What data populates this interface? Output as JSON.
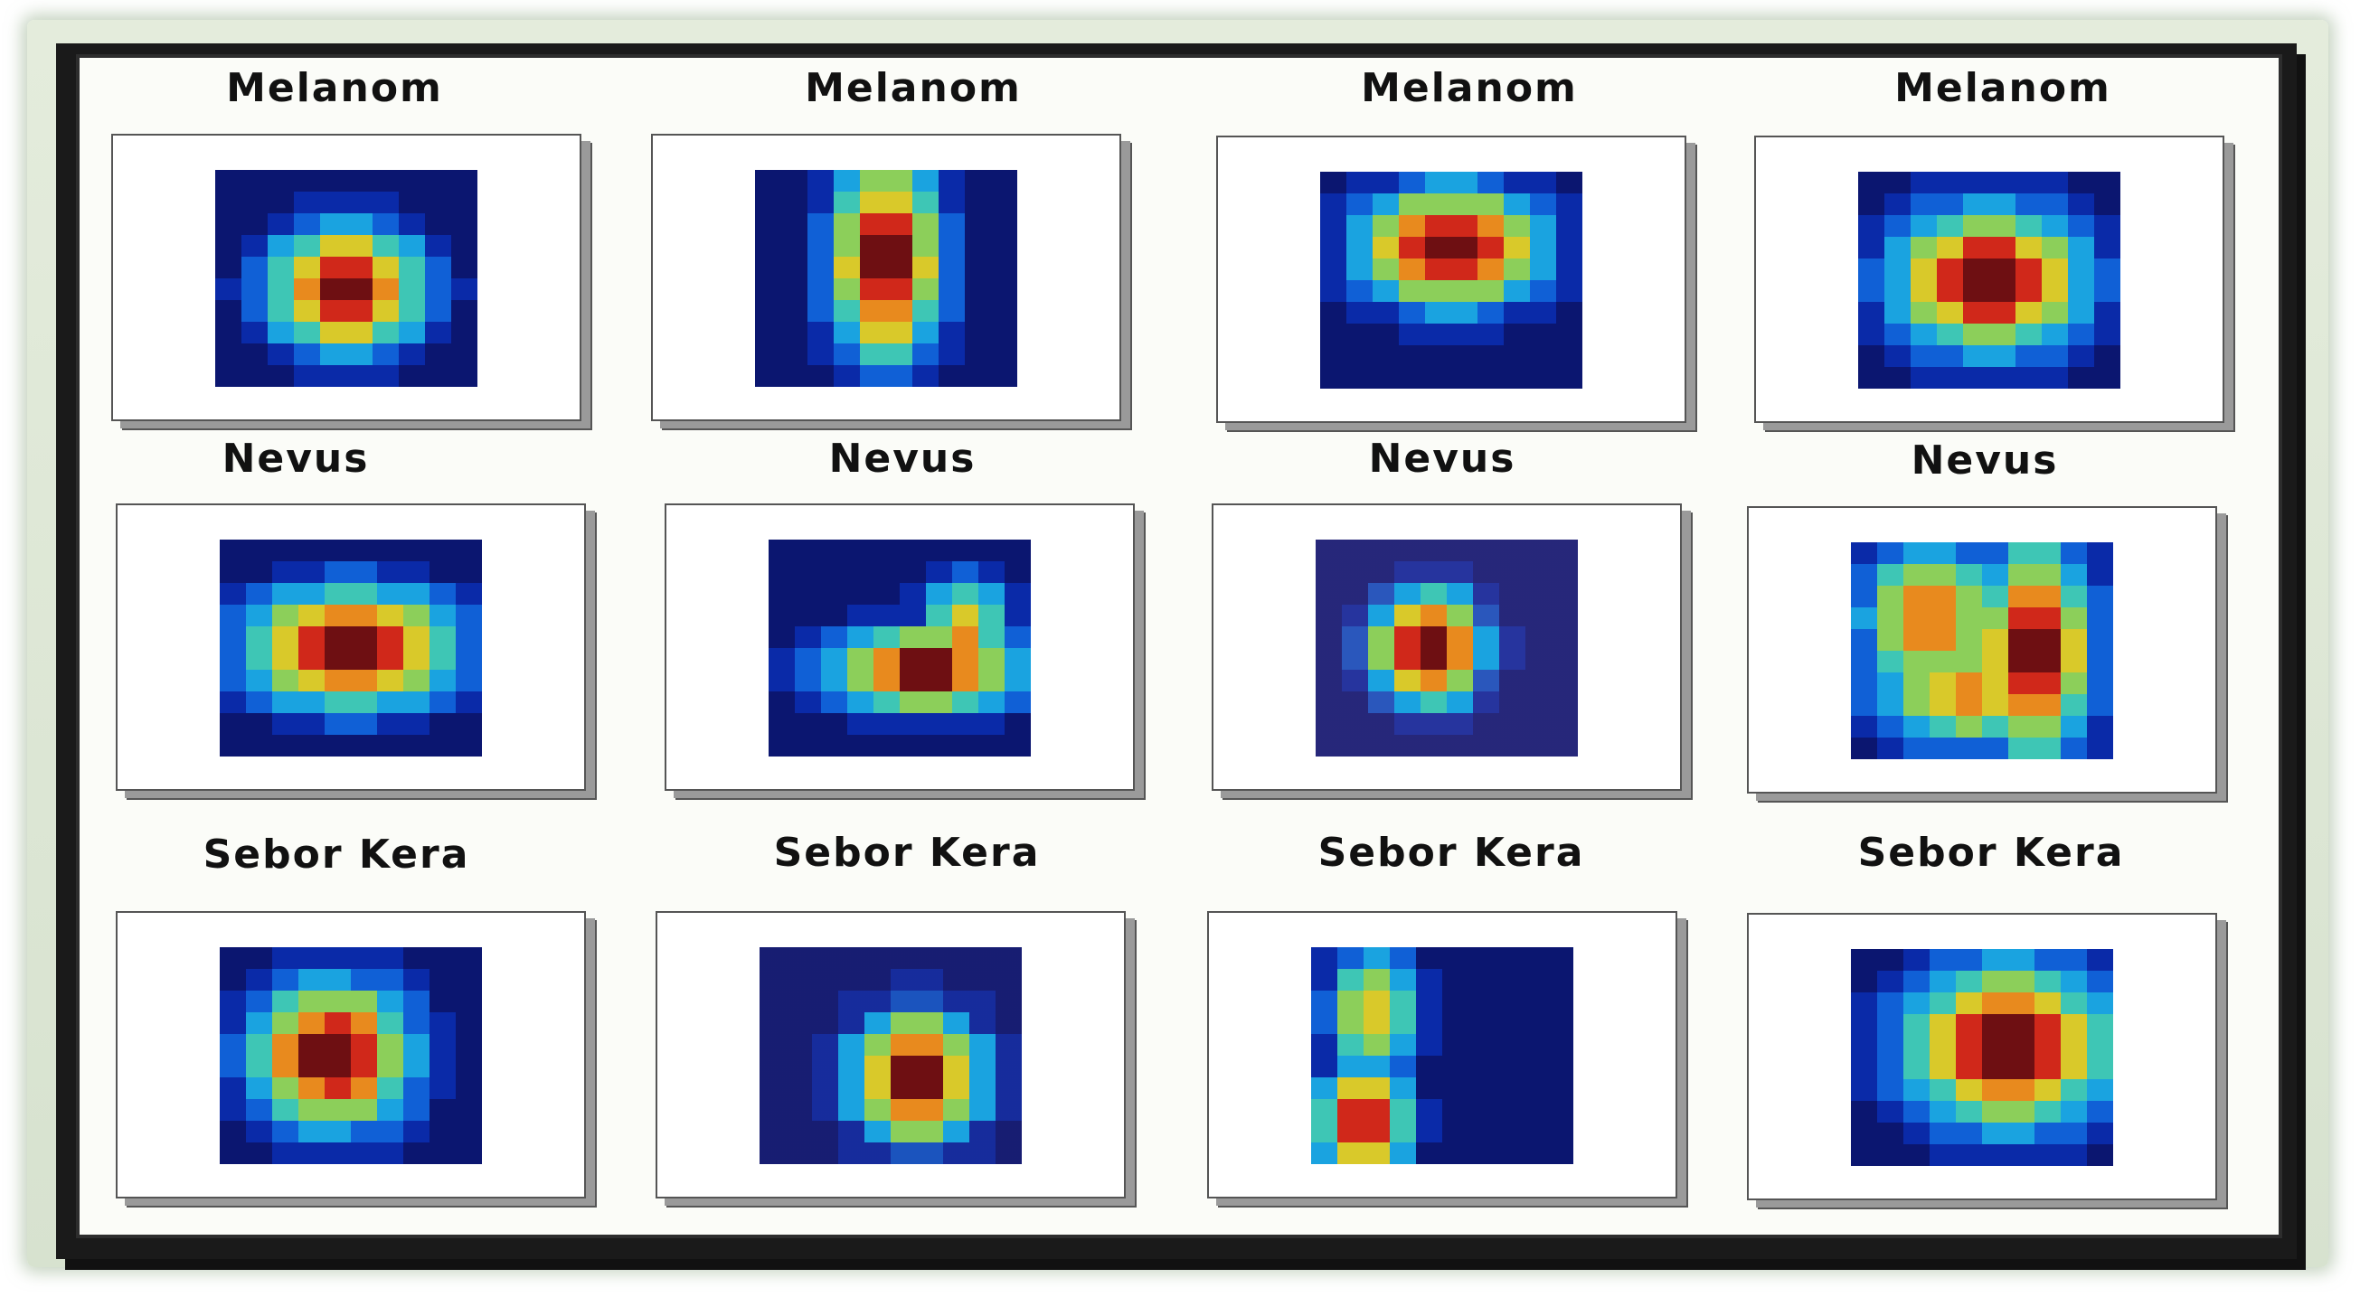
{
  "panels": [
    {
      "label": "Melanom"
    },
    {
      "label": "Melanom"
    },
    {
      "label": "Melanom"
    },
    {
      "label": "Melanom"
    },
    {
      "label": "Nevus"
    },
    {
      "label": "Nevus"
    },
    {
      "label": "Nevus"
    },
    {
      "label": "Nevus"
    },
    {
      "label": "Sebor Kera"
    },
    {
      "label": "Sebor Kera"
    },
    {
      "label": "Sebor Kera"
    },
    {
      "label": "Sebor Kera"
    }
  ],
  "colormap": [
    "#0b1670",
    "#0a2aa8",
    "#1060d6",
    "#1aa3e0",
    "#3ec6b5",
    "#8ccf5a",
    "#d9c92a",
    "#e88a1e",
    "#d0281a",
    "#6e0f12"
  ]
}
